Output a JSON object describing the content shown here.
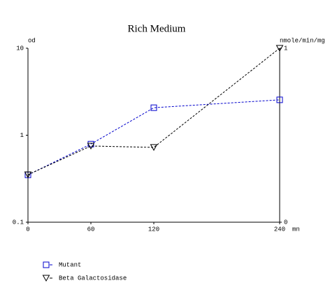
{
  "chart_data": {
    "type": "line",
    "title": "Rich Medium",
    "x_label": "mn",
    "y_label": "od",
    "y2_label": "nmole/min/mg",
    "x": [
      0,
      60,
      120,
      240
    ],
    "xlim": [
      0,
      240
    ],
    "xticks": [
      0,
      60,
      120,
      240
    ],
    "ylim": [
      0.1,
      10
    ],
    "yticks": [
      0.1,
      1,
      10
    ],
    "yscale": "log",
    "y2lim": [
      0,
      1
    ],
    "y2ticks": [
      0,
      1
    ],
    "line_style": "dashed",
    "grid": false,
    "legend": "bottom-left",
    "series": [
      {
        "name": "Mutant",
        "color": "#0000cc",
        "marker": "square",
        "values": [
          0.35,
          0.79,
          2.07,
          2.55
        ]
      },
      {
        "name": "Beta Galactosidase",
        "color": "#000000",
        "marker": "triangle-down",
        "axis": "y2",
        "values": [
          0.273,
          0.438,
          0.43,
          1.0
        ]
      }
    ]
  }
}
